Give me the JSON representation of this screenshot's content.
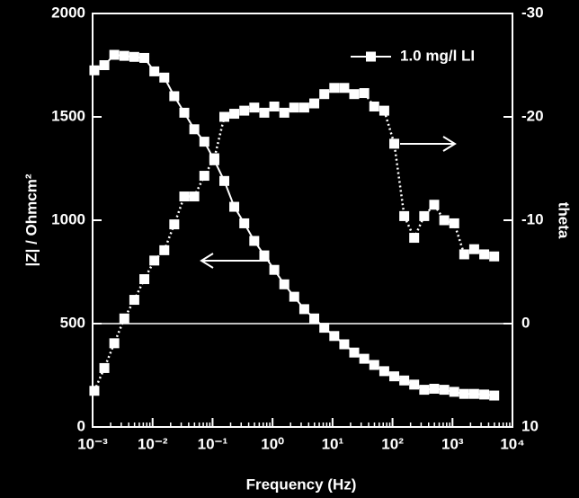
{
  "chart_data": {
    "type": "line",
    "xlabel": "Frequency (Hz)",
    "ylabel": "|Z| / Ohmcm²",
    "y2label": "theta",
    "xscale": "log",
    "xminor": true,
    "zero_line_y2": 0,
    "legend": "upper right",
    "xlim": [
      0.001,
      10000
    ],
    "xticks": [
      {
        "value": 0.001,
        "label": "10⁻³"
      },
      {
        "value": 0.01,
        "label": "10⁻²"
      },
      {
        "value": 0.1,
        "label": "10⁻¹"
      },
      {
        "value": 1,
        "label": "10⁰"
      },
      {
        "value": 10,
        "label": "10¹"
      },
      {
        "value": 100,
        "label": "10²"
      },
      {
        "value": 1000,
        "label": "10³"
      },
      {
        "value": 10000,
        "label": "10⁴"
      }
    ],
    "ylim": [
      0,
      2000
    ],
    "yticks": [
      0,
      500,
      1000,
      1500,
      2000
    ],
    "y2lim": [
      10,
      -30
    ],
    "y2ticks": [
      10,
      0,
      -10,
      -20,
      -30
    ],
    "x": [
      0.00107,
      0.00157,
      0.0023,
      0.00338,
      0.00496,
      0.00729,
      0.0107,
      0.0157,
      0.023,
      0.0338,
      0.0496,
      0.0729,
      0.107,
      0.157,
      0.23,
      0.338,
      0.496,
      0.729,
      1.07,
      1.57,
      2.3,
      3.38,
      4.96,
      7.29,
      10.7,
      15.7,
      23,
      33.8,
      49.6,
      72.9,
      107,
      157,
      230,
      338,
      496,
      729,
      1070,
      1570,
      2300,
      3380,
      4960
    ],
    "series": [
      {
        "name": "1.0 mg/l LI",
        "color": "#ffffff",
        "style": "solid",
        "values": [
          1725,
          1750,
          1800,
          1795,
          1790,
          1785,
          1720,
          1690,
          1600,
          1520,
          1440,
          1380,
          1290,
          1190,
          1065,
          985,
          900,
          830,
          760,
          690,
          630,
          570,
          525,
          480,
          440,
          400,
          360,
          330,
          300,
          270,
          245,
          225,
          205,
          180,
          185,
          180,
          170,
          160,
          160,
          157,
          152
        ]
      },
      {
        "color": "#ffffff",
        "style": "dotted",
        "axis": "y2",
        "values": [
          6.5,
          4.3,
          1.9,
          -0.5,
          -2.3,
          -4.3,
          -6.1,
          -7.1,
          -9.6,
          -12.3,
          -12.3,
          -14.3,
          -16,
          -20,
          -20.3,
          -20.6,
          -20.9,
          -20.4,
          -21,
          -20.4,
          -20.9,
          -20.9,
          -21.3,
          -22.2,
          -22.8,
          -22.8,
          -22.2,
          -22.3,
          -21,
          -20.6,
          -17.4,
          -10.4,
          -8.3,
          -10.4,
          -11.5,
          -10,
          -9.7,
          -6.7,
          -7.2,
          -6.7,
          -6.5
        ]
      }
    ]
  }
}
